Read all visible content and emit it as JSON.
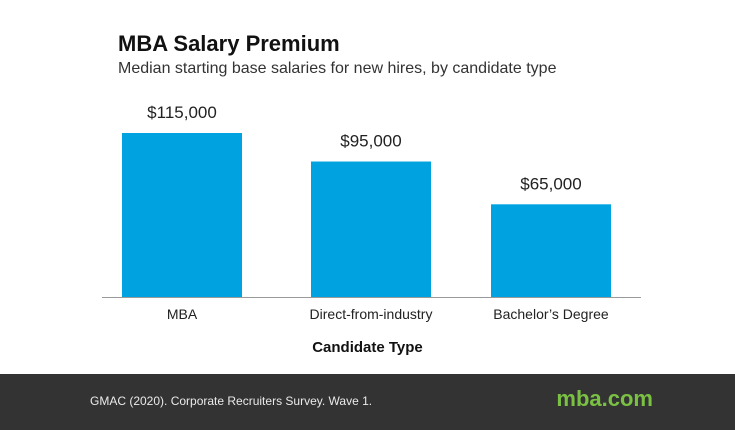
{
  "chart_data": {
    "type": "bar",
    "title": "MBA Salary Premium",
    "subtitle": "Median starting base salaries for new hires, by candidate type",
    "xlabel": "Candidate Type",
    "ylabel": "",
    "categories": [
      "MBA",
      "Direct-from-industry",
      "Bachelor’s Degree"
    ],
    "values": [
      115000,
      95000,
      65000
    ],
    "value_labels": [
      "$115,000",
      "$95,000",
      "$65,000"
    ],
    "ylim": [
      0,
      115000
    ],
    "legend": "none",
    "grid": false
  },
  "footer": {
    "source": "GMAC (2020). Corporate Recruiters Survey. Wave 1.",
    "brand": "mba.com"
  },
  "colors": {
    "bar": "#00a3e0",
    "axis": "#9a9a9a",
    "footer_background": "#333333",
    "brand": "#7ac143"
  }
}
